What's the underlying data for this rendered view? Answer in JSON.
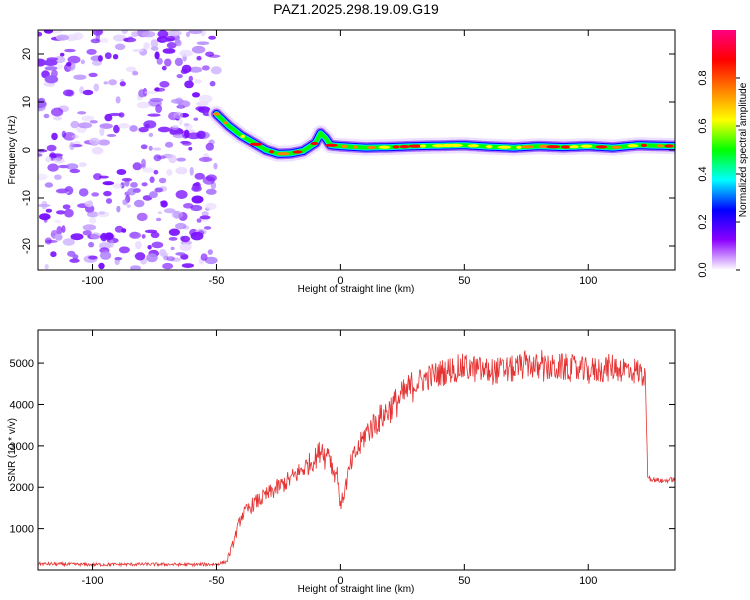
{
  "title": "PAZ1.2025.298.19.09.G19",
  "chart_data": [
    {
      "type": "heatmap",
      "name": "spectrogram",
      "xlabel": "Height of straight line (km)",
      "ylabel": "Frequency (Hz)",
      "xlim": [
        -122,
        135
      ],
      "ylim": [
        -25,
        25
      ],
      "xticks": [
        -100,
        -50,
        0,
        50,
        100
      ],
      "yticks": [
        -20,
        -10,
        0,
        10,
        20
      ],
      "noise_region_x": [
        -122,
        -50
      ],
      "ridge": {
        "x": [
          -50,
          -48,
          -45,
          -40,
          -35,
          -30,
          -25,
          -20,
          -15,
          -10,
          -8,
          -6,
          -4,
          0,
          10,
          20,
          30,
          40,
          50,
          60,
          70,
          80,
          90,
          100,
          110,
          120,
          135
        ],
        "freq": [
          7.5,
          6.5,
          5,
          3,
          1.5,
          0,
          -0.8,
          -0.7,
          -0.2,
          1.5,
          3.5,
          2.5,
          1,
          0.8,
          0.5,
          0.6,
          0.8,
          0.9,
          1,
          0.7,
          0.5,
          0.8,
          0.6,
          0.8,
          0.5,
          1,
          0.8
        ]
      },
      "colorbar": {
        "label": "Normalized spectral amplitude",
        "range": [
          0,
          1
        ],
        "ticks": [
          "0.0",
          "0.2",
          "0.4",
          "0.6",
          "0.8"
        ],
        "tick_values": [
          0,
          0.2,
          0.4,
          0.6,
          0.8
        ],
        "colors": [
          "#ffffff",
          "#8b00ff",
          "#0000ff",
          "#00ffff",
          "#00ff00",
          "#ffff00",
          "#ff8000",
          "#ff0000",
          "#ff0080"
        ]
      }
    },
    {
      "type": "line",
      "name": "snr",
      "xlabel": "Height of straight line (km)",
      "ylabel": "SNR (10 * v/v)",
      "xlim": [
        -122,
        135
      ],
      "ylim": [
        0,
        5800
      ],
      "xticks": [
        -100,
        -50,
        0,
        50,
        100
      ],
      "yticks": [
        1000,
        2000,
        3000,
        4000,
        5000
      ],
      "color": "#e53232",
      "series": [
        {
          "name": "SNR",
          "x": [
            -122,
            -100,
            -80,
            -60,
            -50,
            -46,
            -44,
            -42,
            -40,
            -35,
            -30,
            -25,
            -20,
            -15,
            -10,
            -7,
            -6,
            -5,
            -3,
            -1,
            0,
            2,
            4,
            6,
            8,
            10,
            15,
            20,
            25,
            30,
            35,
            40,
            45,
            50,
            60,
            70,
            76,
            80,
            90,
            100,
            110,
            120,
            123,
            124,
            125,
            130,
            135
          ],
          "y": [
            150,
            130,
            140,
            130,
            140,
            200,
            500,
            900,
            1300,
            1600,
            1800,
            2000,
            2200,
            2450,
            2700,
            3000,
            2600,
            3000,
            2400,
            2300,
            1500,
            2000,
            2500,
            2800,
            3000,
            3300,
            3600,
            3900,
            4200,
            4500,
            4650,
            4750,
            4850,
            4900,
            4800,
            4850,
            5000,
            4850,
            4900,
            4800,
            4900,
            4800,
            4700,
            2300,
            2200,
            2150,
            2200
          ]
        }
      ]
    }
  ]
}
